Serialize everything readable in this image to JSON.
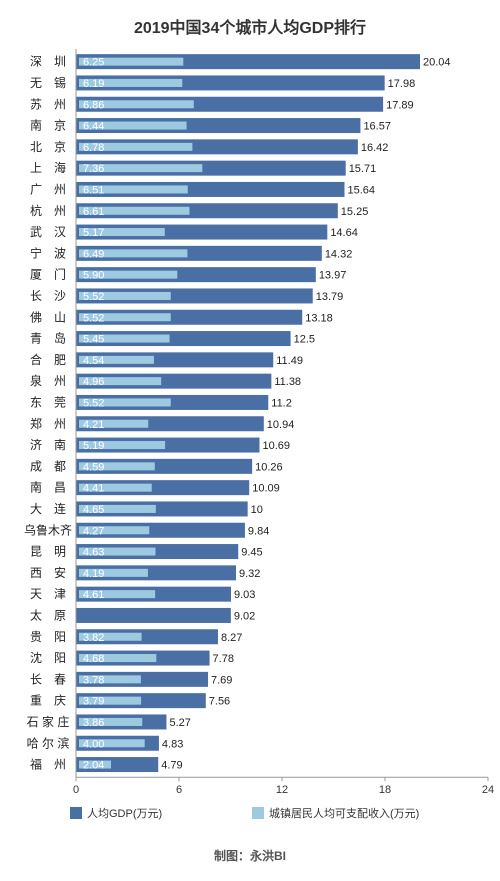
{
  "chart_data": {
    "type": "bar",
    "orientation": "horizontal",
    "title": "2019中国34个城市人均GDP排行",
    "categories": [
      "深　圳",
      "无　锡",
      "苏　州",
      "南　京",
      "北　京",
      "上　海",
      "广　州",
      "杭　州",
      "武　汉",
      "宁　波",
      "厦　门",
      "长　沙",
      "佛　山",
      "青　岛",
      "合　肥",
      "泉　州",
      "东　莞",
      "郑　州",
      "济　南",
      "成　都",
      "南　昌",
      "大　连",
      "乌鲁木齐",
      "昆　明",
      "西　安",
      "天　津",
      "太　原",
      "贵　阳",
      "沈　阳",
      "长　春",
      "重　庆",
      "石 家 庄",
      "哈 尔 滨",
      "福　州"
    ],
    "series": [
      {
        "name": "人均GDP(万元)",
        "values": [
          20.04,
          17.98,
          17.89,
          16.57,
          16.42,
          15.71,
          15.64,
          15.25,
          14.64,
          14.32,
          13.97,
          13.79,
          13.18,
          12.5,
          11.49,
          11.38,
          11.2,
          10.94,
          10.69,
          10.26,
          10.09,
          10,
          9.84,
          9.45,
          9.32,
          9.03,
          9.02,
          8.27,
          7.78,
          7.69,
          7.56,
          5.27,
          4.83,
          4.79
        ],
        "labels": [
          "20.04",
          "17.98",
          "17.89",
          "16.57",
          "16.42",
          "15.71",
          "15.64",
          "15.25",
          "14.64",
          "14.32",
          "13.97",
          "13.79",
          "13.18",
          "12.5",
          "11.49",
          "11.38",
          "11.2",
          "10.94",
          "10.69",
          "10.26",
          "10.09",
          "10",
          "9.84",
          "9.45",
          "9.32",
          "9.03",
          "9.02",
          "8.27",
          "7.78",
          "7.69",
          "7.56",
          "5.27",
          "4.83",
          "4.79"
        ]
      },
      {
        "name": "城镇居民人均可支配收入(万元)",
        "values": [
          6.25,
          6.19,
          6.86,
          6.44,
          6.78,
          7.36,
          6.51,
          6.61,
          5.17,
          6.49,
          5.9,
          5.52,
          5.52,
          5.45,
          4.54,
          4.96,
          5.52,
          4.21,
          5.19,
          4.59,
          4.41,
          4.65,
          4.27,
          4.63,
          4.19,
          4.61,
          null,
          3.82,
          4.68,
          3.78,
          3.79,
          3.86,
          4.0,
          2.04
        ],
        "labels": [
          "6.25",
          "6.19",
          "6.86",
          "6.44",
          "6.78",
          "7.36",
          "6.51",
          "6.61",
          "5.17",
          "6.49",
          "5.90",
          "5.52",
          "5.52",
          "5.45",
          "4.54",
          "4.96",
          "5.52",
          "4.21",
          "5.19",
          "4.59",
          "4.41",
          "4.65",
          "4.27",
          "4.63",
          "4.19",
          "4.61",
          "",
          "3.82",
          "4.68",
          "3.78",
          "3.79",
          "3.86",
          "4.00",
          "2.04"
        ]
      }
    ],
    "x_ticks": [
      "0",
      "6",
      "12",
      "18",
      "24"
    ],
    "xlim": [
      0,
      24
    ],
    "grid": false,
    "legend_position": "bottom",
    "colors": {
      "gdp": "#4a6fa5",
      "income": "#9ecae1"
    }
  },
  "credit": "制图：永洪BI"
}
